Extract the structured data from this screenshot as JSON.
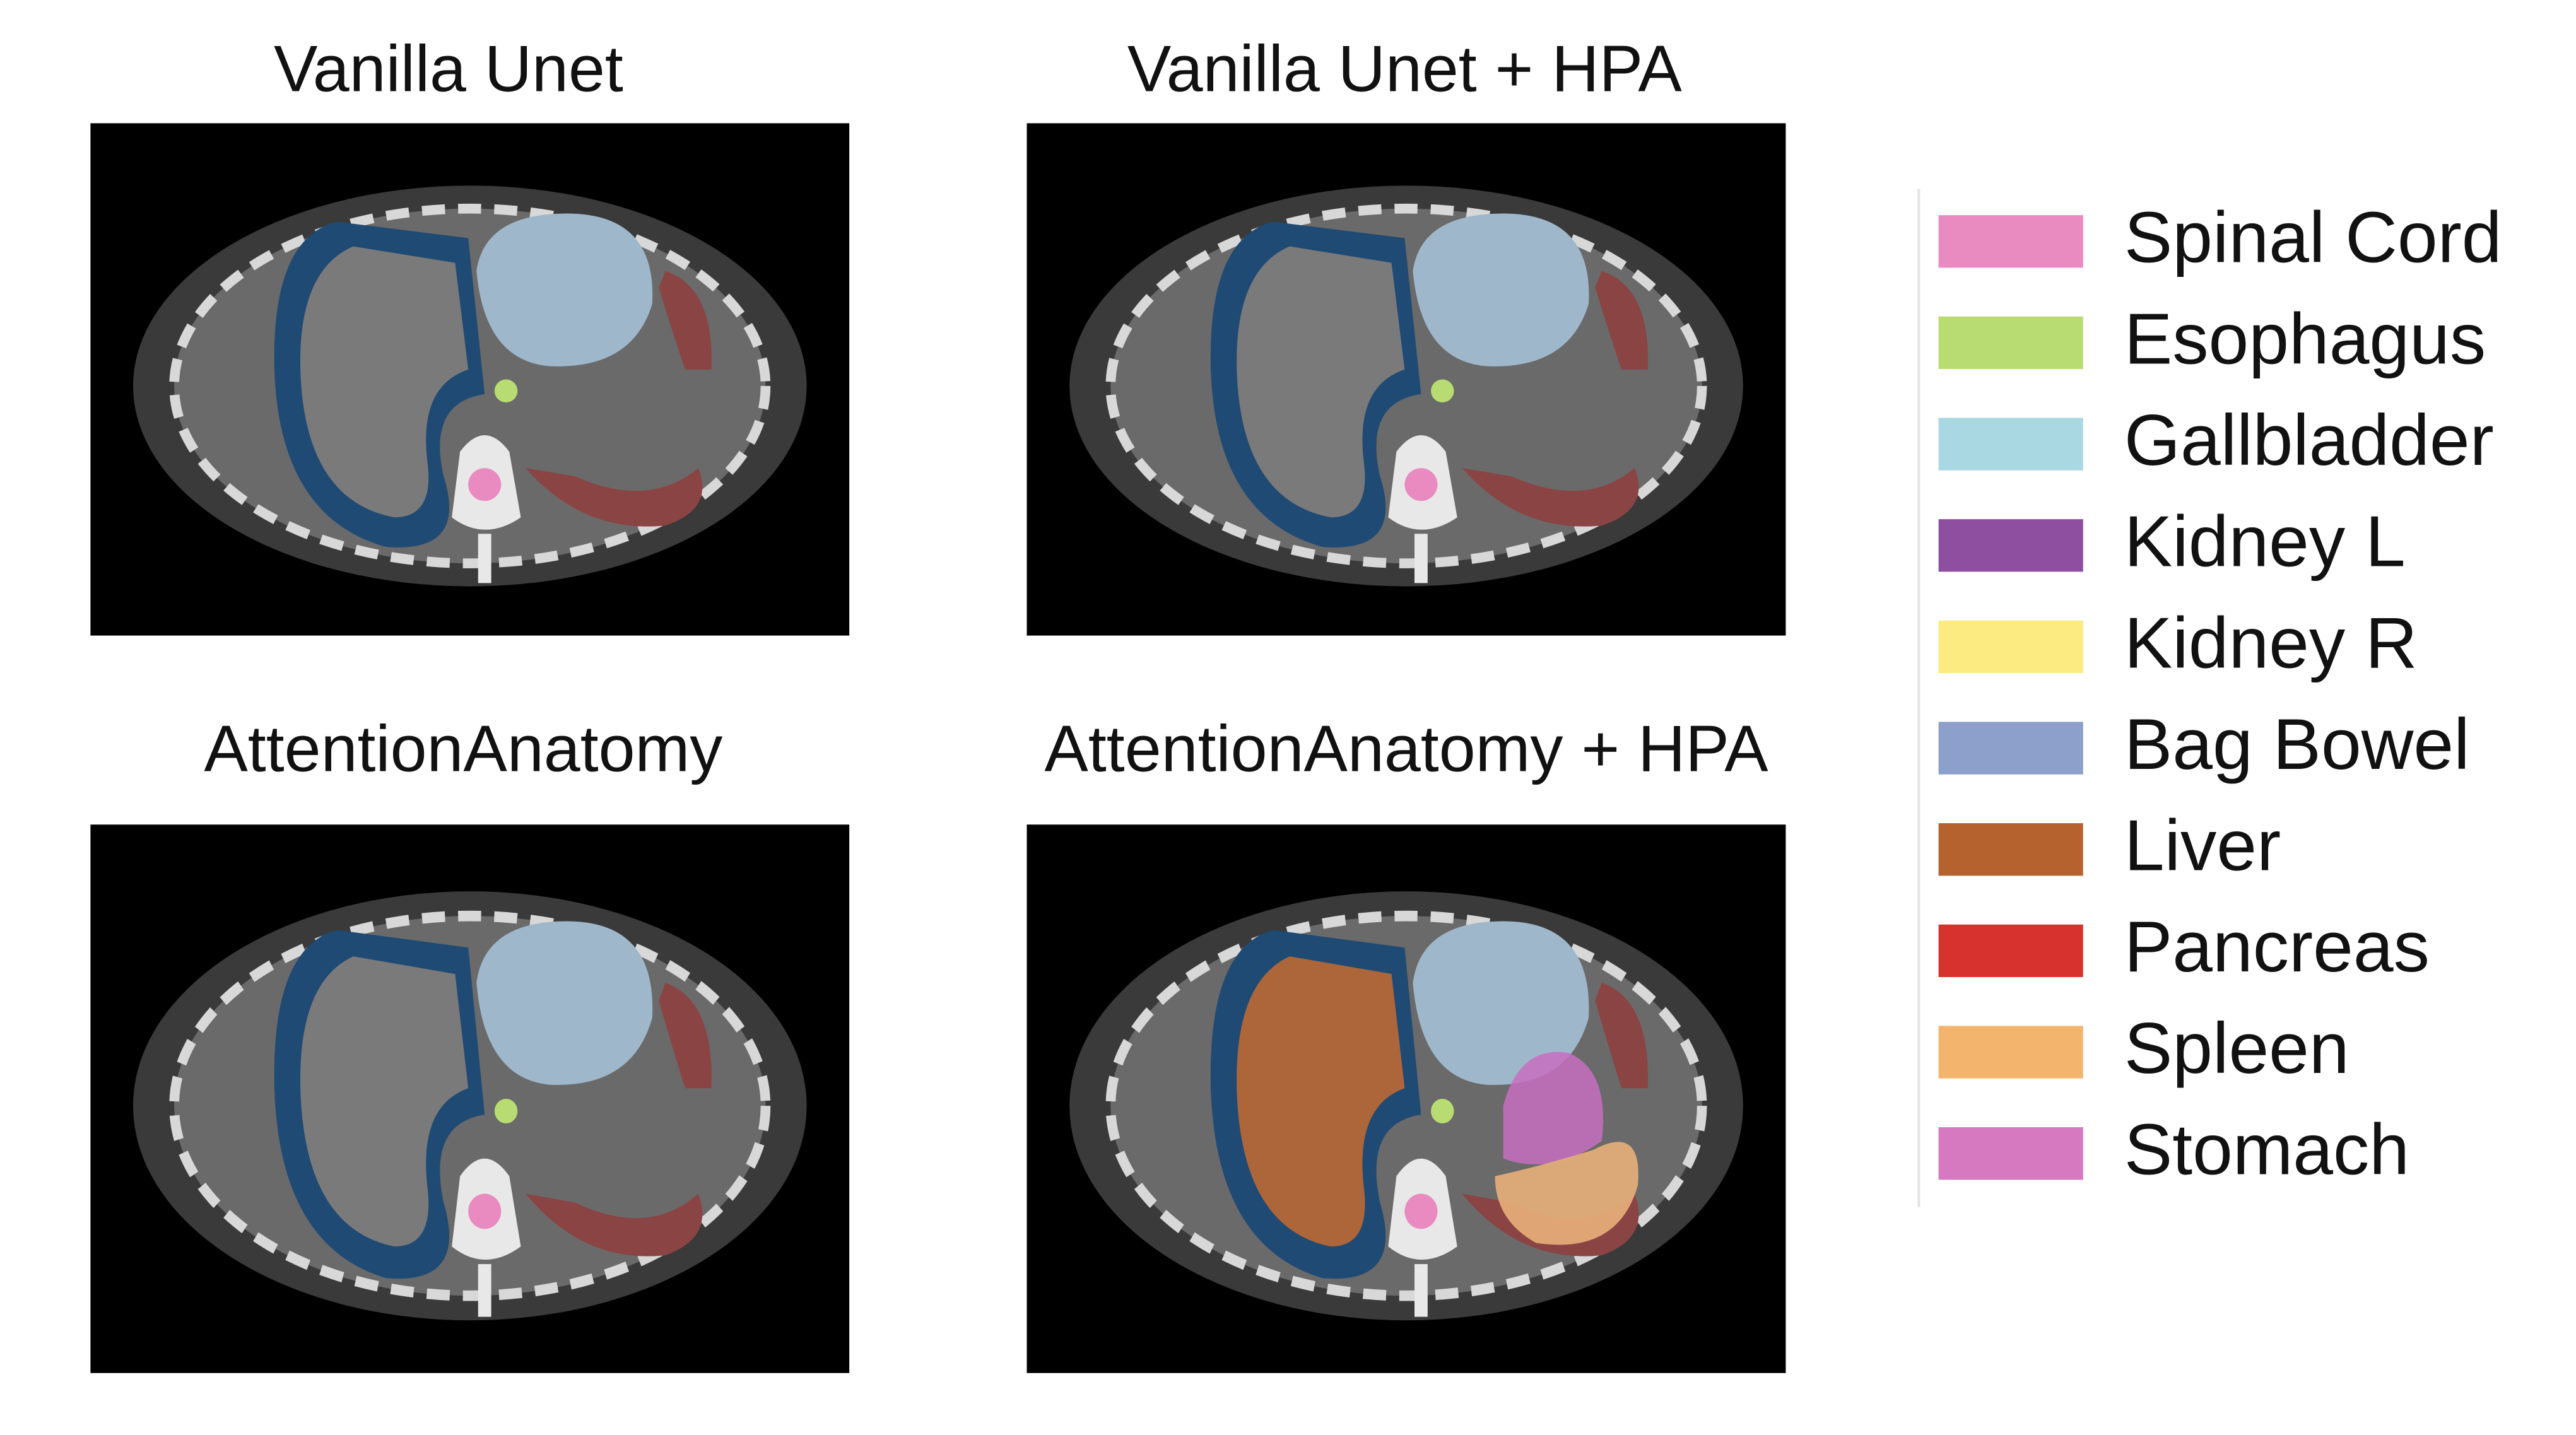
{
  "panels": [
    {
      "title": "Vanilla Unet"
    },
    {
      "title": "Vanilla Unet + HPA"
    },
    {
      "title": "AttentionAnatomy"
    },
    {
      "title": "AttentionAnatomy + HPA"
    }
  ],
  "legend": [
    {
      "label": "Spinal Cord",
      "color": "#e98ac0"
    },
    {
      "label": "Esophagus",
      "color": "#b9dc72"
    },
    {
      "label": "Gallbladder",
      "color": "#a9d7e2"
    },
    {
      "label": "Kidney L",
      "color": "#8e4fa0"
    },
    {
      "label": "Kidney R",
      "color": "#fbeb80"
    },
    {
      "label": "Bag Bowel",
      "color": "#8d9fcb"
    },
    {
      "label": "Liver",
      "color": "#b6622f"
    },
    {
      "label": "Pancreas",
      "color": "#d7322e"
    },
    {
      "label": "Spleen",
      "color": "#f3b56d"
    },
    {
      "label": "Stomach",
      "color": "#d779c1"
    }
  ]
}
